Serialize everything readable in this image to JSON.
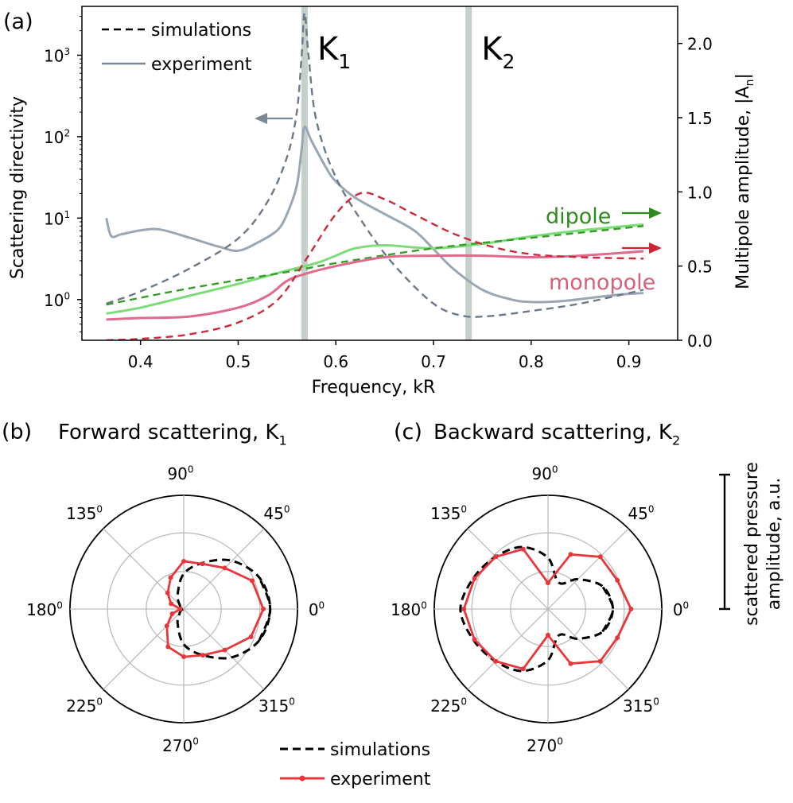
{
  "panel_labels": {
    "a": "(a)",
    "b": "(b)",
    "c": "(c)"
  },
  "chart_data": [
    {
      "id": "a",
      "type": "line",
      "xlabel": "Frequency, kR",
      "ylabel_left": "Scattering directivity",
      "ylabel_right": "Multipole amplitude, |A",
      "ylabel_right_sub": "n",
      "ylabel_right_end": "|",
      "xlim": [
        0.34,
        0.95
      ],
      "xticks": [
        0.4,
        0.5,
        0.6,
        0.7,
        0.8,
        0.9
      ],
      "xtick_labels": [
        "0.4",
        "0.5",
        "0.6",
        "0.7",
        "0.8",
        "0.9"
      ],
      "ylim_left_log10": [
        -0.5,
        3.6
      ],
      "yticks_left": [
        {
          "base": "10",
          "exp": "0",
          "log": 0
        },
        {
          "base": "10",
          "exp": "1",
          "log": 1
        },
        {
          "base": "10",
          "exp": "2",
          "log": 2
        },
        {
          "base": "10",
          "exp": "3",
          "log": 3
        }
      ],
      "ylim_right": [
        0.0,
        2.25
      ],
      "yticks_right": [
        "0.0",
        "0.5",
        "1.0",
        "1.5",
        "2.0"
      ],
      "markers": [
        {
          "base": "K",
          "sub": "1",
          "x": 0.568
        },
        {
          "base": "K",
          "sub": "2",
          "x": 0.736
        }
      ],
      "legend": [
        {
          "label": "simulations",
          "style": "dashed",
          "color": "#000000"
        },
        {
          "label": "experiment",
          "style": "solid",
          "color": "#7b8896"
        }
      ],
      "annotations": [
        {
          "text": "dipole",
          "color": "#2e8b1e",
          "arrow": "right"
        },
        {
          "text": "monopole",
          "color": "#d9607a",
          "arrow": "right-above",
          "arrow_color": "#cc2233"
        },
        {
          "text": "",
          "arrow": "left",
          "color": "#7b8896"
        }
      ],
      "series": [
        {
          "name": "directivity experiment",
          "axis": "left",
          "style": "solid",
          "color": "#9aa7b2",
          "x": [
            0.365,
            0.37,
            0.38,
            0.4,
            0.42,
            0.45,
            0.48,
            0.5,
            0.52,
            0.54,
            0.55,
            0.56,
            0.565,
            0.568,
            0.575,
            0.59,
            0.6,
            0.62,
            0.65,
            0.68,
            0.7,
            0.72,
            0.75,
            0.78,
            0.8,
            0.83,
            0.86,
            0.89,
            0.915
          ],
          "logy": [
            1.0,
            0.78,
            0.8,
            0.85,
            0.86,
            0.76,
            0.65,
            0.6,
            0.7,
            0.85,
            1.05,
            1.4,
            1.85,
            2.12,
            1.95,
            1.62,
            1.45,
            1.25,
            1.05,
            0.85,
            0.62,
            0.38,
            0.12,
            0.0,
            -0.03,
            -0.02,
            0.02,
            0.06,
            0.08
          ]
        },
        {
          "name": "directivity simulations",
          "axis": "left",
          "style": "dashed",
          "color": "#6b7888",
          "x": [
            0.365,
            0.4,
            0.45,
            0.5,
            0.53,
            0.55,
            0.56,
            0.565,
            0.568,
            0.572,
            0.58,
            0.6,
            0.63,
            0.66,
            0.7,
            0.73,
            0.76,
            0.8,
            0.85,
            0.915
          ],
          "logy": [
            -0.05,
            0.1,
            0.38,
            0.75,
            1.2,
            1.75,
            2.3,
            3.0,
            3.52,
            3.0,
            2.2,
            1.5,
            0.9,
            0.42,
            -0.05,
            -0.2,
            -0.2,
            -0.14,
            -0.05,
            0.12
          ]
        },
        {
          "name": "dipole experiment",
          "axis": "right",
          "style": "solid",
          "color": "#7ddc7a",
          "x": [
            0.365,
            0.4,
            0.45,
            0.5,
            0.55,
            0.58,
            0.6,
            0.62,
            0.65,
            0.7,
            0.75,
            0.8,
            0.85,
            0.915
          ],
          "y": [
            0.18,
            0.22,
            0.3,
            0.38,
            0.47,
            0.52,
            0.57,
            0.62,
            0.64,
            0.62,
            0.65,
            0.7,
            0.74,
            0.78
          ]
        },
        {
          "name": "dipole simulations",
          "axis": "right",
          "style": "dashed",
          "color": "#3a9a2a",
          "x": [
            0.365,
            0.45,
            0.55,
            0.6,
            0.7,
            0.8,
            0.915
          ],
          "y": [
            0.24,
            0.35,
            0.46,
            0.52,
            0.62,
            0.69,
            0.77
          ]
        },
        {
          "name": "monopole experiment",
          "axis": "right",
          "style": "solid",
          "color": "#e06a8c",
          "x": [
            0.365,
            0.4,
            0.45,
            0.5,
            0.53,
            0.55,
            0.57,
            0.6,
            0.65,
            0.7,
            0.75,
            0.8,
            0.85,
            0.915
          ],
          "y": [
            0.14,
            0.15,
            0.16,
            0.22,
            0.3,
            0.4,
            0.45,
            0.5,
            0.56,
            0.57,
            0.57,
            0.56,
            0.57,
            0.6
          ]
        },
        {
          "name": "monopole simulations",
          "axis": "right",
          "style": "dashed",
          "color": "#cc2a3a",
          "x": [
            0.365,
            0.4,
            0.45,
            0.5,
            0.54,
            0.57,
            0.6,
            0.625,
            0.65,
            0.68,
            0.72,
            0.76,
            0.8,
            0.85,
            0.915
          ],
          "y": [
            0.0,
            0.01,
            0.04,
            0.12,
            0.27,
            0.55,
            0.85,
            0.99,
            0.95,
            0.85,
            0.72,
            0.63,
            0.58,
            0.56,
            0.55
          ]
        }
      ]
    },
    {
      "id": "b",
      "type": "polar",
      "title": "Forward scattering, K",
      "title_sub": "1",
      "angle_labels": [
        {
          "deg": 0,
          "text": "0"
        },
        {
          "deg": 45,
          "text": "45"
        },
        {
          "deg": 90,
          "text": "90"
        },
        {
          "deg": 135,
          "text": "135"
        },
        {
          "deg": 180,
          "text": "180"
        },
        {
          "deg": 225,
          "text": "225"
        },
        {
          "deg": 270,
          "text": "270"
        },
        {
          "deg": 315,
          "text": "315"
        }
      ],
      "degree_mark": "0",
      "rings": [
        0.33,
        0.67,
        1.0
      ],
      "rmax": 1.0,
      "angles": [
        0,
        22.5,
        45,
        67.5,
        90,
        112.5,
        135,
        157.5,
        180,
        202.5,
        225,
        247.5,
        270,
        292.5,
        315,
        337.5
      ],
      "series": [
        {
          "name": "simulations",
          "style": "dashed",
          "color": "#000000",
          "r": [
            0.76,
            0.72,
            0.6,
            0.44,
            0.31,
            0.14,
            0.05,
            0.02,
            0.0,
            0.02,
            0.05,
            0.14,
            0.31,
            0.44,
            0.6,
            0.72
          ]
        },
        {
          "name": "experiment",
          "style": "solid-marker",
          "color": "#e8363a",
          "r": [
            0.7,
            0.65,
            0.51,
            0.43,
            0.42,
            0.3,
            0.2,
            0.12,
            0.03,
            0.11,
            0.21,
            0.36,
            0.42,
            0.44,
            0.51,
            0.64
          ]
        }
      ]
    },
    {
      "id": "c",
      "type": "polar",
      "title": "Backward scattering, K",
      "title_sub": "2",
      "angle_labels": [
        {
          "deg": 0,
          "text": "0"
        },
        {
          "deg": 45,
          "text": "45"
        },
        {
          "deg": 90,
          "text": "90"
        },
        {
          "deg": 135,
          "text": "135"
        },
        {
          "deg": 180,
          "text": "180"
        },
        {
          "deg": 225,
          "text": "225"
        },
        {
          "deg": 270,
          "text": "270"
        },
        {
          "deg": 315,
          "text": "315"
        }
      ],
      "degree_mark": "0",
      "rings": [
        0.33,
        0.67,
        1.0
      ],
      "rmax": 1.0,
      "angles": [
        0,
        22.5,
        45,
        67.5,
        90,
        112.5,
        135,
        157.5,
        180,
        202.5,
        225,
        247.5,
        270,
        292.5,
        315,
        337.5
      ],
      "series": [
        {
          "name": "simulations",
          "style": "dashed",
          "color": "#000000",
          "r": [
            0.57,
            0.52,
            0.37,
            0.25,
            0.45,
            0.59,
            0.65,
            0.71,
            0.77,
            0.71,
            0.65,
            0.59,
            0.45,
            0.25,
            0.37,
            0.52
          ]
        },
        {
          "name": "experiment",
          "style": "solid-marker",
          "color": "#e8363a",
          "r": [
            0.73,
            0.66,
            0.65,
            0.52,
            0.23,
            0.57,
            0.65,
            0.7,
            0.74,
            0.7,
            0.65,
            0.57,
            0.23,
            0.52,
            0.65,
            0.66
          ]
        }
      ]
    }
  ],
  "bottom_legend": [
    {
      "label": "simulations",
      "style": "dashed",
      "color": "#000000"
    },
    {
      "label": "experiment",
      "style": "solid-marker",
      "color": "#e8363a"
    }
  ],
  "scale_bar": {
    "label_line1": "scattered pressure",
    "label_line2": "amplitude, a.u."
  }
}
